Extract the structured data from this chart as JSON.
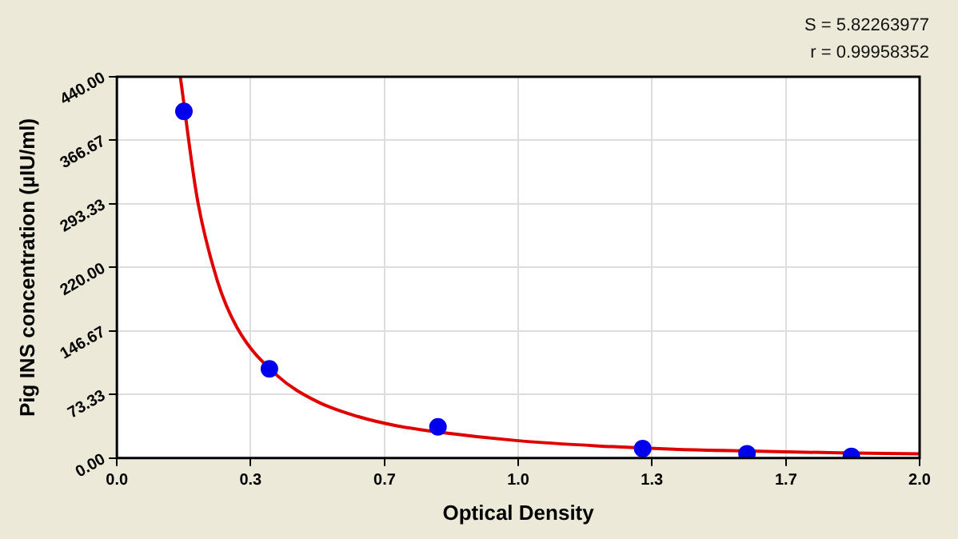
{
  "chart_data": {
    "type": "scatter",
    "xlabel": "Optical Density",
    "ylabel": "Pig INS concentration (µIU/ml)",
    "xlim": [
      0,
      2
    ],
    "xticks": [
      {
        "value": 0,
        "label": "0.0"
      },
      {
        "value": 0.333,
        "label": "0.3"
      },
      {
        "value": 0.667,
        "label": "0.7"
      },
      {
        "value": 1,
        "label": "1.0"
      },
      {
        "value": 1.333,
        "label": "1.3"
      },
      {
        "value": 1.667,
        "label": "1.7"
      },
      {
        "value": 2,
        "label": "2.0"
      }
    ],
    "ylim": [
      0,
      440
    ],
    "yticks": [
      {
        "value": 0,
        "label": "0.00"
      },
      {
        "value": 73.33,
        "label": "73.33"
      },
      {
        "value": 146.67,
        "label": "146.67"
      },
      {
        "value": 220,
        "label": "220.00"
      },
      {
        "value": 293.33,
        "label": "293.33"
      },
      {
        "value": 366.67,
        "label": "366.67"
      },
      {
        "value": 440,
        "label": "440.00"
      }
    ],
    "grid": true,
    "legend": false,
    "marker": "circle",
    "series": [
      {
        "color": "#0000ee",
        "x": [
          0.167,
          0.38,
          0.8,
          1.31,
          1.57,
          1.83
        ],
        "values": [
          400,
          103,
          36,
          11,
          5,
          2
        ]
      },
      {
        "type": "line",
        "color": "#e00000",
        "marker": "none",
        "x": [
          0.158,
          0.2,
          0.25,
          0.3,
          0.4,
          0.5,
          0.6,
          0.7,
          0.8,
          1.0,
          1.2,
          1.4,
          1.6,
          1.8,
          2.0
        ],
        "values": [
          440,
          300,
          205,
          150,
          95,
          65,
          48,
          37,
          30,
          20,
          14,
          10,
          8,
          6,
          5
        ]
      }
    ],
    "annotations": [
      "S = 5.82263977",
      "r = 0.99958352"
    ]
  }
}
